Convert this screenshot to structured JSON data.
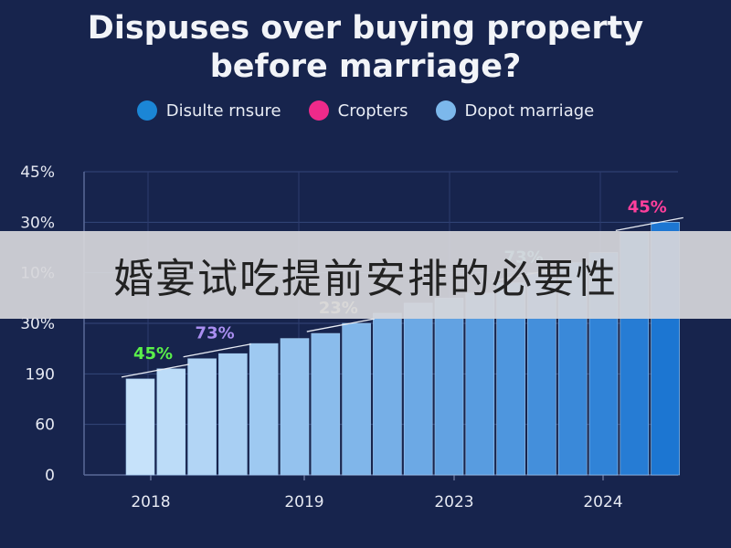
{
  "title_line1": "Dispuses over buying property",
  "title_line2": "before marriage?",
  "legend": [
    {
      "label": "Disulte rnsure",
      "color": "#1b86d6"
    },
    {
      "label": "Cropters",
      "color": "#ee2a8a"
    },
    {
      "label": "Dopot marriage",
      "color": "#7cb8ec"
    }
  ],
  "overlay_text": "婚宴试吃提前安排的必要性",
  "chart_data": {
    "type": "bar",
    "y_tick_labels": [
      "0",
      "60",
      "190",
      "30%",
      "10%",
      "30%",
      "45%"
    ],
    "x_tick_labels": [
      "2018",
      "2019",
      "2023",
      "2024"
    ],
    "values": [
      1.9,
      2.1,
      2.3,
      2.4,
      2.6,
      2.7,
      2.8,
      3.0,
      3.2,
      3.4,
      3.5,
      3.6,
      3.8,
      4.0,
      4.2,
      4.4,
      4.8,
      5.0
    ],
    "ylim": [
      0,
      6
    ],
    "grid": true,
    "annotations": [
      {
        "text": "45%",
        "bar_index": 0,
        "color": "#5af04a"
      },
      {
        "text": "73%",
        "bar_index": 2,
        "color": "#a98ef0"
      },
      {
        "text": "23%",
        "bar_index": 6,
        "color": "#f6ecb0"
      },
      {
        "text": "73%",
        "bar_index": 12,
        "color": "#7ce0ec"
      },
      {
        "text": "45%",
        "bar_index": 16,
        "color": "#ff3f9c"
      }
    ]
  }
}
